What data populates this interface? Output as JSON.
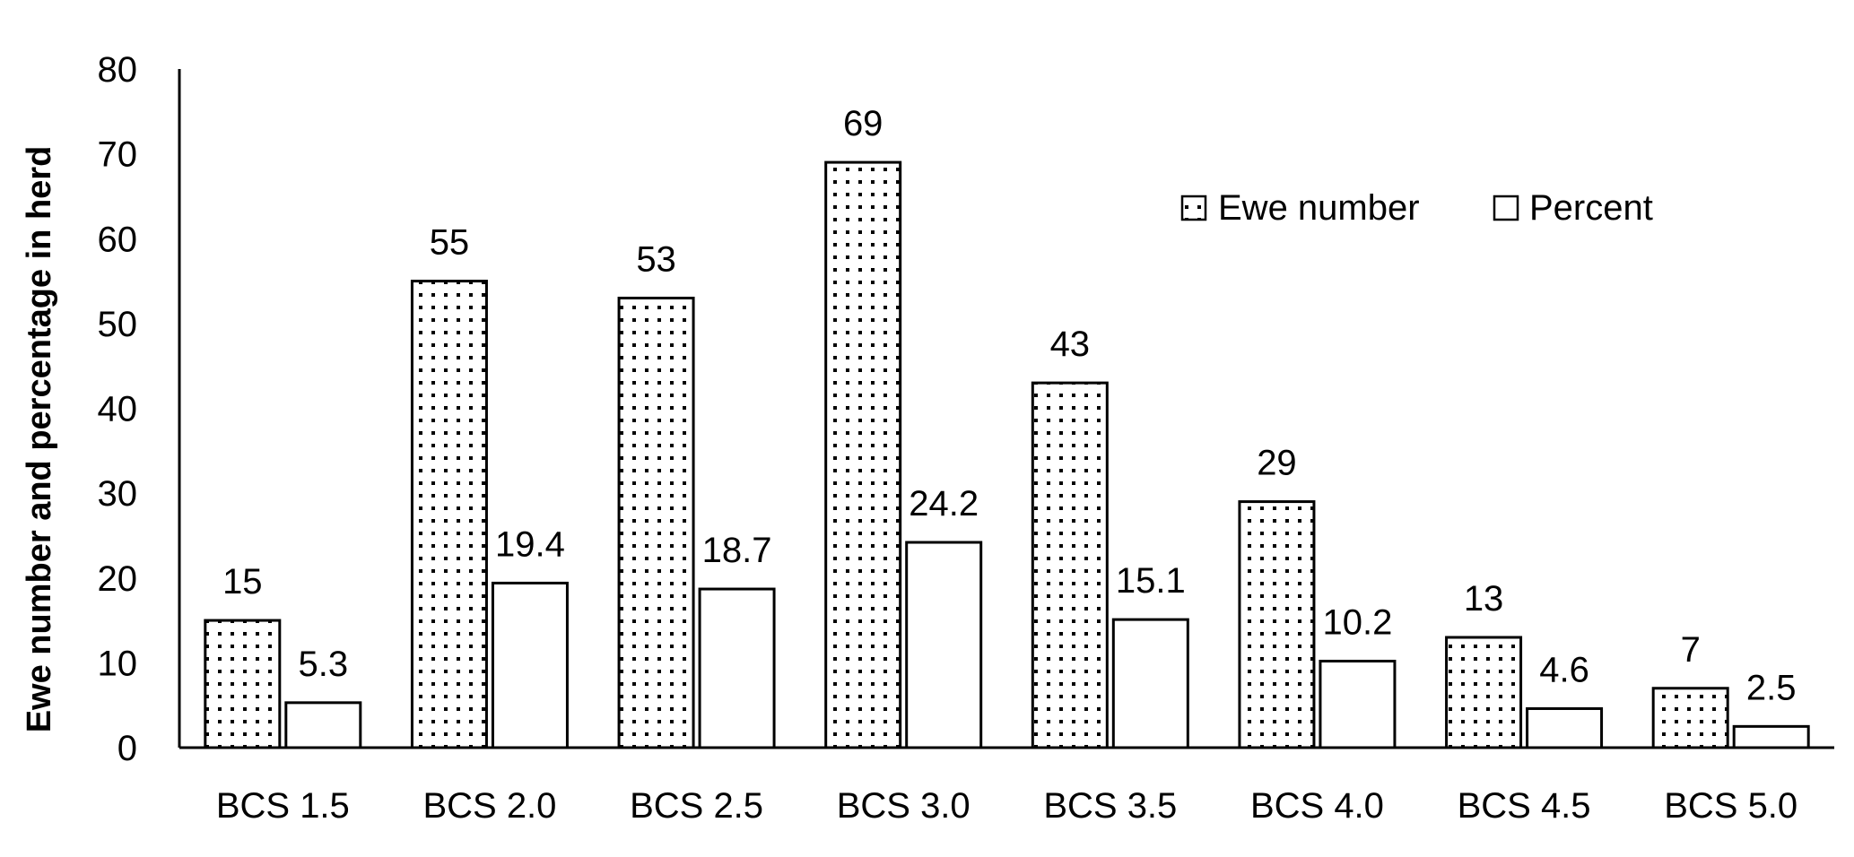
{
  "chart_data": {
    "type": "bar",
    "title": "",
    "xlabel": "",
    "ylabel": "Ewe number  and percentage in herd",
    "ylim": [
      0,
      80
    ],
    "yticks": [
      "0",
      "10",
      "20",
      "30",
      "40",
      "50",
      "60",
      "70",
      "80"
    ],
    "categories": [
      "BCS 1.5",
      "BCS 2.0",
      "BCS 2.5",
      "BCS 3.0",
      "BCS 3.5",
      "BCS 4.0",
      "BCS 4.5",
      "BCS 5.0"
    ],
    "series": [
      {
        "name": "Ewe number",
        "values": [
          15,
          55,
          53,
          69,
          43,
          29,
          13,
          7
        ],
        "labels": [
          "15",
          "55",
          "53",
          "69",
          "43",
          "29",
          "13",
          "7"
        ],
        "fill": "dotted"
      },
      {
        "name": "Percent",
        "values": [
          5.3,
          19.4,
          18.7,
          24.2,
          15.1,
          10.2,
          4.6,
          2.5
        ],
        "labels": [
          "5.3",
          "19.4",
          "18.7",
          "24.2",
          "15.1",
          "10.2",
          "4.6",
          "2.5"
        ],
        "fill": "white"
      }
    ],
    "grid": false,
    "legend_position": "top-right",
    "colors": {
      "stroke": "#000000",
      "background": "#ffffff",
      "dot": "#000000"
    }
  }
}
